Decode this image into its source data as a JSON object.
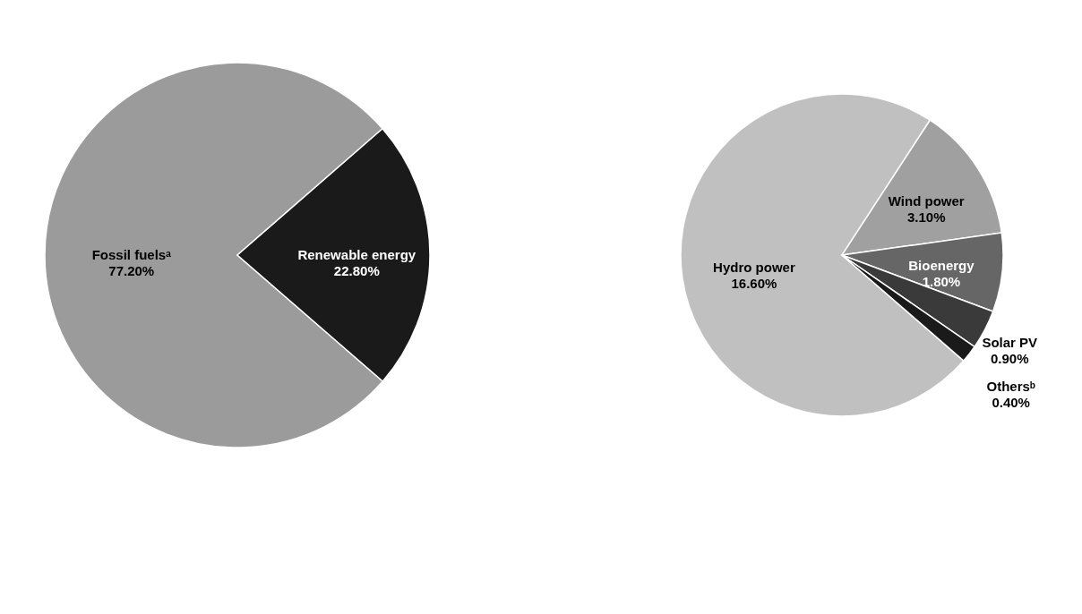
{
  "chart_data": [
    {
      "type": "pie",
      "categories": [
        "Fossil fuelsᵃ",
        "Renewable energy"
      ],
      "values": [
        77.2,
        22.8
      ],
      "value_labels": [
        "77.20%",
        "22.80%"
      ],
      "colors": [
        "#9b9b9b",
        "#1a1a1a"
      ]
    },
    {
      "type": "pie",
      "categories": [
        "Hydro power",
        "Wind power",
        "Bioenergy",
        "Solar PV",
        "Othersᵇ"
      ],
      "values": [
        16.6,
        3.1,
        1.8,
        0.9,
        0.4
      ],
      "value_labels": [
        "16.60%",
        "3.10%",
        "1.80%",
        "0.90%",
        "0.40%"
      ],
      "colors": [
        "#c0c0c0",
        "#a0a0a0",
        "#666666",
        "#3a3a3a",
        "#1a1a1a"
      ]
    }
  ]
}
